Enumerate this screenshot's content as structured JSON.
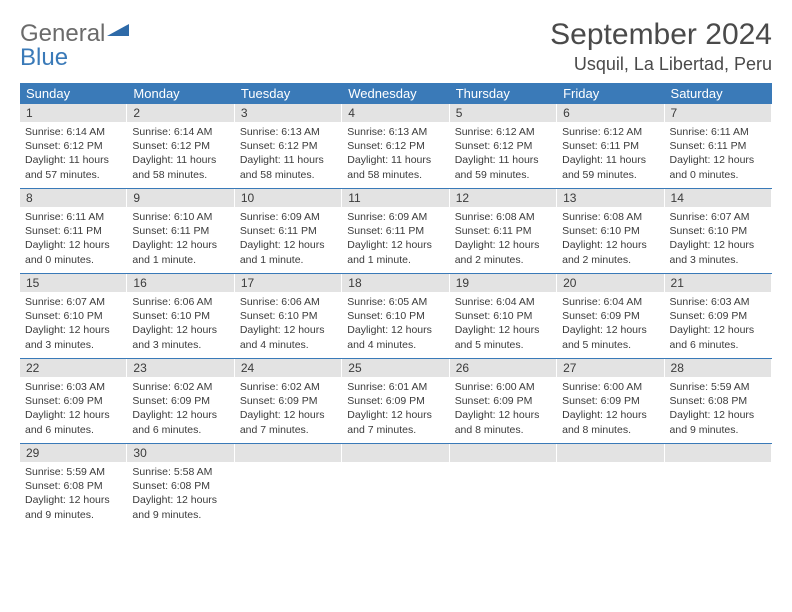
{
  "brand": {
    "part1": "General",
    "part2": "Blue"
  },
  "title": "September 2024",
  "location": "Usquil, La Libertad, Peru",
  "colors": {
    "header_bg": "#3a7ab8",
    "header_text": "#ffffff",
    "daynum_bg": "#e3e3e3",
    "body_text": "#3b3b3b",
    "rule": "#3a7ab8",
    "page_bg": "#ffffff"
  },
  "day_headers": [
    "Sunday",
    "Monday",
    "Tuesday",
    "Wednesday",
    "Thursday",
    "Friday",
    "Saturday"
  ],
  "weeks": [
    [
      {
        "n": "1",
        "sr": "Sunrise: 6:14 AM",
        "ss": "Sunset: 6:12 PM",
        "dl": "Daylight: 11 hours and 57 minutes."
      },
      {
        "n": "2",
        "sr": "Sunrise: 6:14 AM",
        "ss": "Sunset: 6:12 PM",
        "dl": "Daylight: 11 hours and 58 minutes."
      },
      {
        "n": "3",
        "sr": "Sunrise: 6:13 AM",
        "ss": "Sunset: 6:12 PM",
        "dl": "Daylight: 11 hours and 58 minutes."
      },
      {
        "n": "4",
        "sr": "Sunrise: 6:13 AM",
        "ss": "Sunset: 6:12 PM",
        "dl": "Daylight: 11 hours and 58 minutes."
      },
      {
        "n": "5",
        "sr": "Sunrise: 6:12 AM",
        "ss": "Sunset: 6:12 PM",
        "dl": "Daylight: 11 hours and 59 minutes."
      },
      {
        "n": "6",
        "sr": "Sunrise: 6:12 AM",
        "ss": "Sunset: 6:11 PM",
        "dl": "Daylight: 11 hours and 59 minutes."
      },
      {
        "n": "7",
        "sr": "Sunrise: 6:11 AM",
        "ss": "Sunset: 6:11 PM",
        "dl": "Daylight: 12 hours and 0 minutes."
      }
    ],
    [
      {
        "n": "8",
        "sr": "Sunrise: 6:11 AM",
        "ss": "Sunset: 6:11 PM",
        "dl": "Daylight: 12 hours and 0 minutes."
      },
      {
        "n": "9",
        "sr": "Sunrise: 6:10 AM",
        "ss": "Sunset: 6:11 PM",
        "dl": "Daylight: 12 hours and 1 minute."
      },
      {
        "n": "10",
        "sr": "Sunrise: 6:09 AM",
        "ss": "Sunset: 6:11 PM",
        "dl": "Daylight: 12 hours and 1 minute."
      },
      {
        "n": "11",
        "sr": "Sunrise: 6:09 AM",
        "ss": "Sunset: 6:11 PM",
        "dl": "Daylight: 12 hours and 1 minute."
      },
      {
        "n": "12",
        "sr": "Sunrise: 6:08 AM",
        "ss": "Sunset: 6:11 PM",
        "dl": "Daylight: 12 hours and 2 minutes."
      },
      {
        "n": "13",
        "sr": "Sunrise: 6:08 AM",
        "ss": "Sunset: 6:10 PM",
        "dl": "Daylight: 12 hours and 2 minutes."
      },
      {
        "n": "14",
        "sr": "Sunrise: 6:07 AM",
        "ss": "Sunset: 6:10 PM",
        "dl": "Daylight: 12 hours and 3 minutes."
      }
    ],
    [
      {
        "n": "15",
        "sr": "Sunrise: 6:07 AM",
        "ss": "Sunset: 6:10 PM",
        "dl": "Daylight: 12 hours and 3 minutes."
      },
      {
        "n": "16",
        "sr": "Sunrise: 6:06 AM",
        "ss": "Sunset: 6:10 PM",
        "dl": "Daylight: 12 hours and 3 minutes."
      },
      {
        "n": "17",
        "sr": "Sunrise: 6:06 AM",
        "ss": "Sunset: 6:10 PM",
        "dl": "Daylight: 12 hours and 4 minutes."
      },
      {
        "n": "18",
        "sr": "Sunrise: 6:05 AM",
        "ss": "Sunset: 6:10 PM",
        "dl": "Daylight: 12 hours and 4 minutes."
      },
      {
        "n": "19",
        "sr": "Sunrise: 6:04 AM",
        "ss": "Sunset: 6:10 PM",
        "dl": "Daylight: 12 hours and 5 minutes."
      },
      {
        "n": "20",
        "sr": "Sunrise: 6:04 AM",
        "ss": "Sunset: 6:09 PM",
        "dl": "Daylight: 12 hours and 5 minutes."
      },
      {
        "n": "21",
        "sr": "Sunrise: 6:03 AM",
        "ss": "Sunset: 6:09 PM",
        "dl": "Daylight: 12 hours and 6 minutes."
      }
    ],
    [
      {
        "n": "22",
        "sr": "Sunrise: 6:03 AM",
        "ss": "Sunset: 6:09 PM",
        "dl": "Daylight: 12 hours and 6 minutes."
      },
      {
        "n": "23",
        "sr": "Sunrise: 6:02 AM",
        "ss": "Sunset: 6:09 PM",
        "dl": "Daylight: 12 hours and 6 minutes."
      },
      {
        "n": "24",
        "sr": "Sunrise: 6:02 AM",
        "ss": "Sunset: 6:09 PM",
        "dl": "Daylight: 12 hours and 7 minutes."
      },
      {
        "n": "25",
        "sr": "Sunrise: 6:01 AM",
        "ss": "Sunset: 6:09 PM",
        "dl": "Daylight: 12 hours and 7 minutes."
      },
      {
        "n": "26",
        "sr": "Sunrise: 6:00 AM",
        "ss": "Sunset: 6:09 PM",
        "dl": "Daylight: 12 hours and 8 minutes."
      },
      {
        "n": "27",
        "sr": "Sunrise: 6:00 AM",
        "ss": "Sunset: 6:09 PM",
        "dl": "Daylight: 12 hours and 8 minutes."
      },
      {
        "n": "28",
        "sr": "Sunrise: 5:59 AM",
        "ss": "Sunset: 6:08 PM",
        "dl": "Daylight: 12 hours and 9 minutes."
      }
    ],
    [
      {
        "n": "29",
        "sr": "Sunrise: 5:59 AM",
        "ss": "Sunset: 6:08 PM",
        "dl": "Daylight: 12 hours and 9 minutes."
      },
      {
        "n": "30",
        "sr": "Sunrise: 5:58 AM",
        "ss": "Sunset: 6:08 PM",
        "dl": "Daylight: 12 hours and 9 minutes."
      },
      {
        "n": "",
        "sr": "",
        "ss": "",
        "dl": ""
      },
      {
        "n": "",
        "sr": "",
        "ss": "",
        "dl": ""
      },
      {
        "n": "",
        "sr": "",
        "ss": "",
        "dl": ""
      },
      {
        "n": "",
        "sr": "",
        "ss": "",
        "dl": ""
      },
      {
        "n": "",
        "sr": "",
        "ss": "",
        "dl": ""
      }
    ]
  ]
}
